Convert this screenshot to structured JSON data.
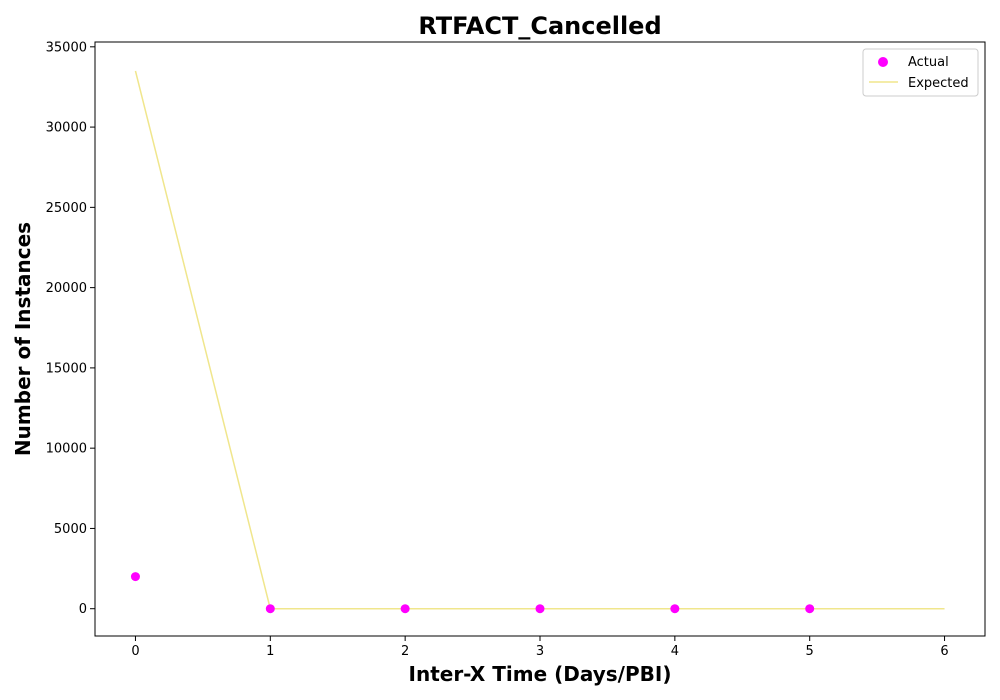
{
  "chart_data": {
    "type": "scatter",
    "title": "RTFACT_Cancelled",
    "xlabel": "Inter-X Time (Days/PBI)",
    "ylabel": "Number of Instances",
    "xlim": [
      -0.3,
      6.3
    ],
    "ylim": [
      -1700,
      35300
    ],
    "xticks": [
      0,
      1,
      2,
      3,
      4,
      5,
      6
    ],
    "yticks": [
      0,
      5000,
      10000,
      15000,
      20000,
      25000,
      30000,
      35000
    ],
    "grid": false,
    "legend_position": "top-right",
    "series": [
      {
        "name": "Actual",
        "kind": "scatter",
        "color": "#ff00ff",
        "x": [
          0,
          1,
          2,
          3,
          4,
          5
        ],
        "y": [
          2000,
          0,
          0,
          0,
          0,
          0
        ]
      },
      {
        "name": "Expected",
        "kind": "line",
        "color": "#f0e68c",
        "x": [
          0,
          1,
          2,
          3,
          4,
          5,
          6
        ],
        "y": [
          33500,
          0,
          0,
          0,
          0,
          0,
          0
        ]
      }
    ]
  }
}
